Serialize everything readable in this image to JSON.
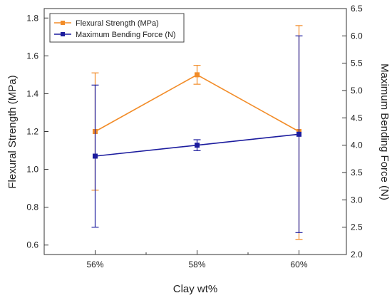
{
  "chart_data": {
    "type": "line",
    "title": "",
    "categories": [
      "56%",
      "58%",
      "60%"
    ],
    "xlabel": "Clay wt%",
    "ylabel_left": "Flexural Strength (MPa)",
    "ylabel_right": "Maximum Bending Force (N)",
    "ylim_left": [
      0.55,
      1.85
    ],
    "ylim_right": [
      2.0,
      6.5
    ],
    "yticks_left": [
      "0.6",
      "0.8",
      "1.0",
      "1.2",
      "1.4",
      "1.6",
      "1.8"
    ],
    "yticks_right": [
      "2.0",
      "2.5",
      "3.0",
      "3.5",
      "4.0",
      "4.5",
      "5.0",
      "5.5",
      "6.0",
      "6.5"
    ],
    "grid": false,
    "legend_position": "top-left",
    "series": [
      {
        "name": "Flexural Strength (MPa)",
        "axis": "left",
        "color": "#F28C28",
        "values": [
          1.2,
          1.5,
          1.2
        ],
        "err_low": [
          0.89,
          1.45,
          0.63
        ],
        "err_high": [
          1.51,
          1.55,
          1.76
        ]
      },
      {
        "name": "Maximum Bending Force (N)",
        "axis": "right",
        "color": "#1C1C9E",
        "values": [
          3.8,
          4.0,
          4.2
        ],
        "err_low": [
          2.5,
          3.9,
          2.4
        ],
        "err_high": [
          5.1,
          4.1,
          6.0
        ]
      }
    ]
  }
}
